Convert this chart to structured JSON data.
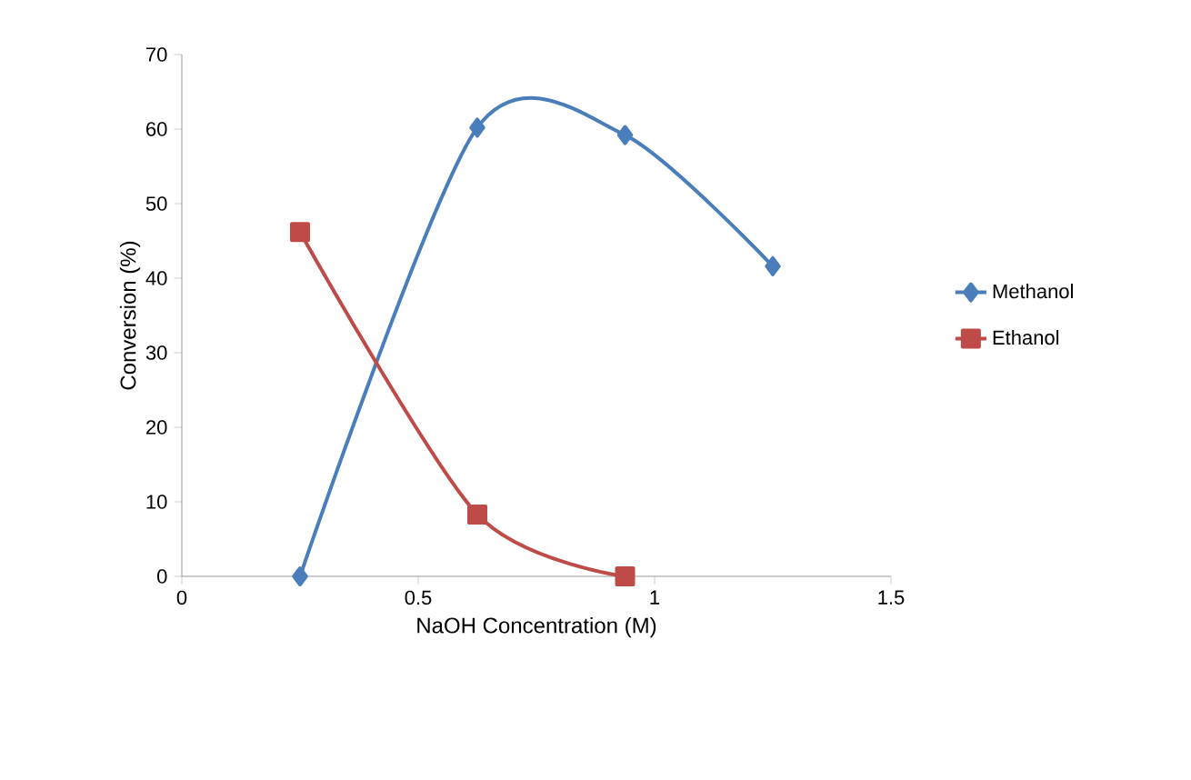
{
  "chart_data": {
    "type": "line",
    "xlabel": "NaOH Concentration (M)",
    "ylabel": "Conversion (%)",
    "xlim": [
      0,
      1.5
    ],
    "xticks": [
      0,
      0.5,
      1,
      1.5
    ],
    "ylim": [
      0,
      70
    ],
    "yticks": [
      0,
      10,
      20,
      30,
      40,
      50,
      60,
      70
    ],
    "grid": false,
    "legend": "right",
    "line_style": "solid",
    "series": [
      {
        "name": "Methanol",
        "color": "#4a7ebb",
        "marker": "diamond",
        "x": [
          0.25,
          0.625,
          0.9375,
          1.25
        ],
        "values": [
          0,
          60.2,
          59.2,
          41.6
        ]
      },
      {
        "name": "Ethanol",
        "color": "#be4b48",
        "marker": "square",
        "x": [
          0.25,
          0.625,
          0.9375
        ],
        "values": [
          46.2,
          8.3,
          0
        ]
      }
    ]
  }
}
